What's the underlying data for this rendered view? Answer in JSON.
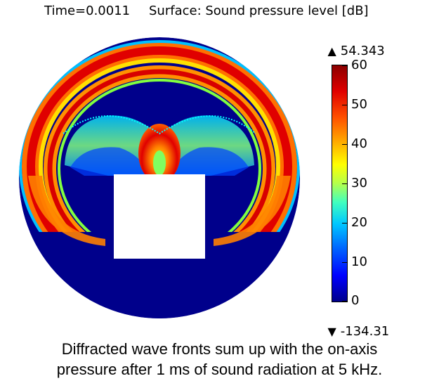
{
  "header": {
    "time_label": "Time=0.0011",
    "surface_label": "Surface: Sound pressure level [dB]"
  },
  "colorbar": {
    "max_marker": "▲",
    "max_value": "54.343",
    "min_marker": "▼",
    "min_value": "-134.31",
    "ticks": [
      "60",
      "50",
      "40",
      "30",
      "20",
      "10",
      "0"
    ],
    "range": [
      0,
      60
    ]
  },
  "colors": {
    "background_field": "#00008b",
    "obstacle": "#ffffff",
    "wave_red": "#d40000",
    "wave_orange": "#ff8a00",
    "wave_yellow": "#ffe800",
    "wave_cyan": "#00c8ff"
  },
  "caption": {
    "line1": "Diffracted wave fronts sum up with the on-axis",
    "line2": "pressure after 1 ms of sound radiation at 5 kHz."
  }
}
